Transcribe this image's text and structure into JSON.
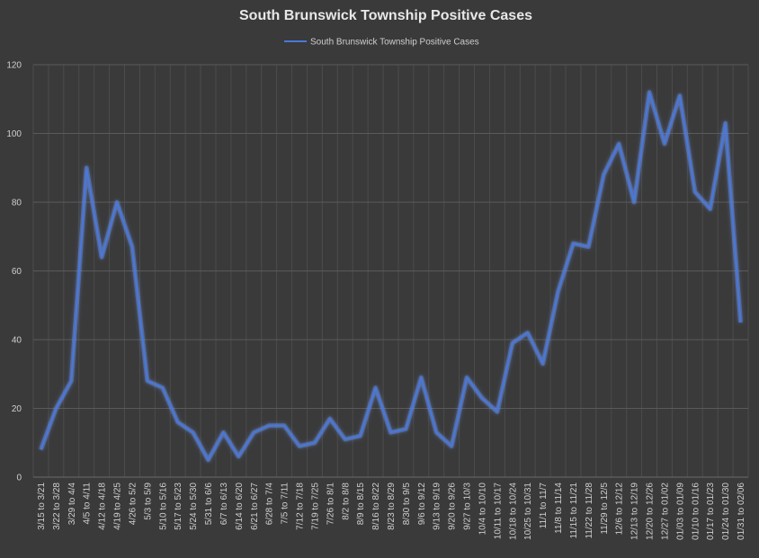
{
  "chart_data": {
    "type": "line",
    "title": "South Brunswick Township Positive Cases",
    "xlabel": "",
    "ylabel": "",
    "ylim": [
      0,
      120
    ],
    "yticks": [
      0,
      20,
      40,
      60,
      80,
      100,
      120
    ],
    "grid": true,
    "legend_position": "top-center",
    "line_color": "#4a78d8",
    "glow_color": "#6f9cff",
    "categories": [
      "3/15 to 3/21",
      "3/22 to 3/28",
      "3/29 to 4/4",
      "4/5 to 4/11",
      "4/12 to 4/18",
      "4/19 to 4/25",
      "4/26 to 5/2",
      "5/3 to 5/9",
      "5/10 to 5/16",
      "5/17 to 5/23",
      "5/24 to 5/30",
      "5/31 to 6/6",
      "6/7 to 6/13",
      "6/14 to 6/20",
      "6/21 to 6/27",
      "6/28 to 7/4",
      "7/5 to 7/11",
      "7/12 to 7/18",
      "7/19 to 7/25",
      "7/26 to 8/1",
      "8/2 to 8/8",
      "8/9 to 8/15",
      "8/16 to 8/22",
      "8/23 to 8/29",
      "8/30 to 9/5",
      "9/6 to 9/12",
      "9/13 to 9/19",
      "9/20 to 9/26",
      "9/27 to 10/3",
      "10/4 to 10/10",
      "10/11 to 10/17",
      "10/18 to 10/24",
      "10/25 to 10/31",
      "11/1 to 11/7",
      "11/8 to 11/14",
      "11/15 to 11/21",
      "11/22 to 11/28",
      "11/29 to 12/5",
      "12/6 to 12/12",
      "12/13 to 12/19",
      "12/20 to 12/26",
      "12/27 to 01/02",
      "01/03 to 01/09",
      "01/10 to 01/16",
      "01/17 to 01/23",
      "01/24 to 01/30",
      "01/31 to 02/06"
    ],
    "series": [
      {
        "name": "South Brunswick Township Positive Cases",
        "values": [
          8,
          20,
          28,
          90,
          64,
          80,
          67,
          28,
          26,
          16,
          13,
          5,
          13,
          6,
          13,
          15,
          15,
          9,
          10,
          17,
          11,
          12,
          26,
          13,
          14,
          29,
          13,
          9,
          29,
          23,
          19,
          39,
          42,
          33,
          54,
          68,
          67,
          88,
          97,
          80,
          112,
          97,
          111,
          83,
          78,
          103,
          45
        ]
      }
    ]
  }
}
